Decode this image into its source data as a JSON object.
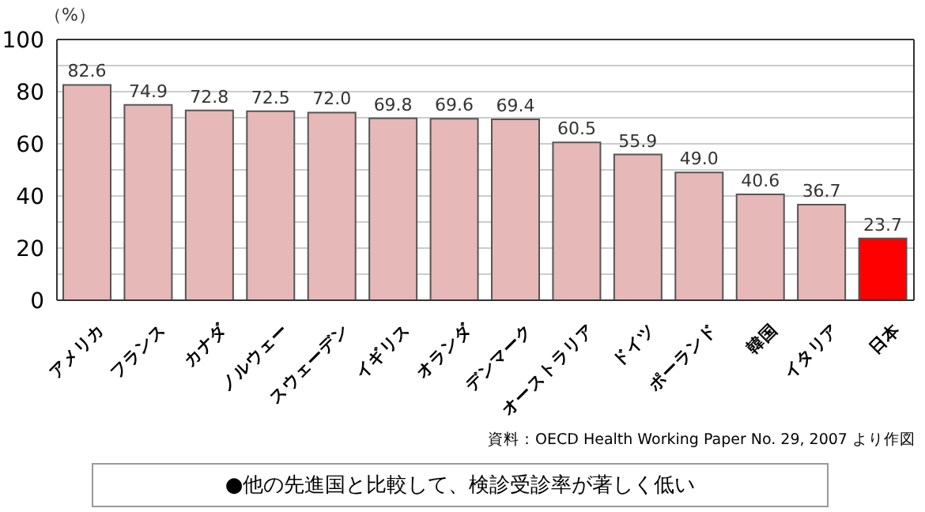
{
  "chart_data": {
    "type": "bar",
    "ylabel": "（%）",
    "categories": [
      "アメリカ",
      "フランス",
      "カナダ",
      "ノルウェー",
      "スウェーデン",
      "イギリス",
      "オランダ",
      "デンマーク",
      "オーストラリア",
      "ドイツ",
      "ポーランド",
      "韓国",
      "イタリア",
      "日本"
    ],
    "values": [
      82.6,
      74.9,
      72.8,
      72.5,
      72.0,
      69.8,
      69.6,
      69.4,
      60.5,
      55.9,
      49.0,
      40.6,
      36.7,
      23.7
    ],
    "colors": [
      "#e6b8b7",
      "#e6b8b7",
      "#e6b8b7",
      "#e6b8b7",
      "#e6b8b7",
      "#e6b8b7",
      "#e6b8b7",
      "#e6b8b7",
      "#e6b8b7",
      "#e6b8b7",
      "#e6b8b7",
      "#e6b8b7",
      "#e6b8b7",
      "#ff0000"
    ],
    "ylim": [
      0,
      100
    ],
    "yticks": [
      0,
      {
        "value": 10,
        "label": null
      },
      20,
      {
        "value": 30,
        "label": null
      },
      40,
      {
        "value": 50,
        "label": null
      },
      60,
      {
        "value": 70,
        "label": null
      },
      80,
      {
        "value": 90,
        "label": null
      },
      100
    ],
    "value_labels": [
      "82.6",
      "74.9",
      "72.8",
      "72.5",
      "72.0",
      "69.8",
      "69.6",
      "69.4",
      "60.5",
      "55.9",
      "49.0",
      "40.6",
      "36.7",
      "23.7"
    ],
    "grid": "y",
    "data_labels": true,
    "annotations": [
      "資料：OECD Health Working Paper No. 29, 2007 より作図",
      "●他の先進国と比較して、検診受診率が著しく低い"
    ]
  }
}
